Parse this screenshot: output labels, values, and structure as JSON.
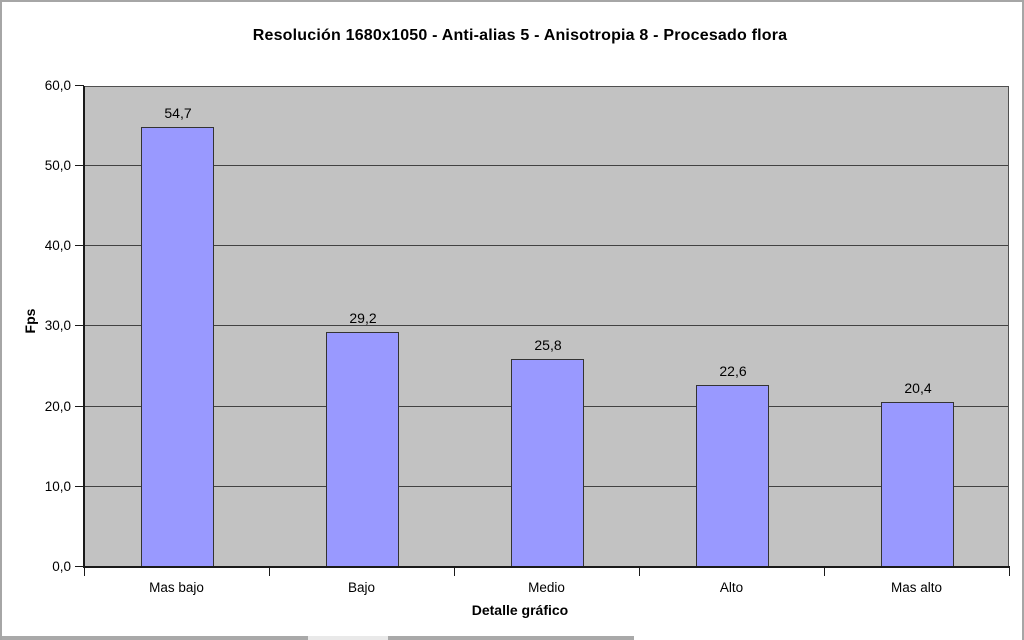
{
  "page": {
    "background": "#ffffff",
    "border_color": "#a6a6a6",
    "bottom_strip_color": "#a9a9a9",
    "bottom_strip_light_color": "#e9e9e9"
  },
  "chart_data": {
    "type": "bar",
    "title": "Resolución 1680x1050 - Anti-alias 5 - Anisotropia 8 - Procesado flora",
    "xlabel": "Detalle gráfico",
    "ylabel": "Fps",
    "categories": [
      "Mas bajo",
      "Bajo",
      "Medio",
      "Alto",
      "Mas alto"
    ],
    "values": [
      54.7,
      29.2,
      25.8,
      22.6,
      20.4
    ],
    "value_labels": [
      "54,7",
      "29,2",
      "25,8",
      "22,6",
      "20,4"
    ],
    "ylim": [
      0,
      60
    ],
    "ytick_step": 10,
    "ytick_values": [
      0,
      10,
      20,
      30,
      40,
      50,
      60
    ],
    "ytick_labels": [
      "0,0",
      "10,0",
      "20,0",
      "30,0",
      "40,0",
      "50,0",
      "60,0"
    ],
    "grid": true,
    "legend": "none",
    "colors": {
      "bar_fill": "#9999ff",
      "bar_border": "#333333",
      "plot_bg": "#c2c2c2",
      "plot_border": "#4f4f4f",
      "gridline": "#424242",
      "axis_line": "#1a1a1a",
      "text": "#000000"
    }
  }
}
